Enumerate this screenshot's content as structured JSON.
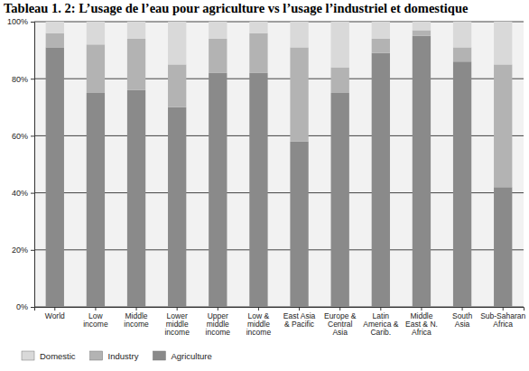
{
  "chart_data": {
    "type": "bar",
    "title": "Tableau 1. 2: L’usage de l’eau pour agriculture  vs l’usage l’industriel et domestique",
    "stacked": true,
    "grid": true,
    "legend": "bottom-left",
    "categories": [
      "World",
      "Low income",
      "Middle income",
      "Lower middle income",
      "Upper middle income",
      "Low & middle income",
      "East Asia & Pacific",
      "Europe & Central Asia",
      "Latin America & Carib.",
      "Middle East & N. Africa",
      "South Asia",
      "Sub-Saharan Africa"
    ],
    "series": [
      {
        "name": "Domestic",
        "color": "#d9d9d9",
        "values": [
          4,
          8,
          6,
          15,
          6,
          4,
          9,
          16,
          6,
          3,
          9,
          15
        ]
      },
      {
        "name": "Industry",
        "color": "#b3b3b3",
        "values": [
          5,
          17,
          18,
          15,
          12,
          14,
          33,
          9,
          5,
          2,
          5,
          43
        ]
      },
      {
        "name": "Agriculture",
        "color": "#8a8a8a",
        "values": [
          91,
          75,
          76,
          70,
          82,
          82,
          58,
          75,
          89,
          95,
          86,
          42
        ]
      }
    ],
    "ylim": [
      0,
      100
    ],
    "yticks": [
      {
        "value": 0,
        "label": "0%"
      },
      {
        "value": 20,
        "label": "20%"
      },
      {
        "value": 40,
        "label": "40%"
      },
      {
        "value": 60,
        "label": "60%"
      },
      {
        "value": 80,
        "label": "80%"
      },
      {
        "value": 100,
        "label": "100%"
      }
    ]
  }
}
